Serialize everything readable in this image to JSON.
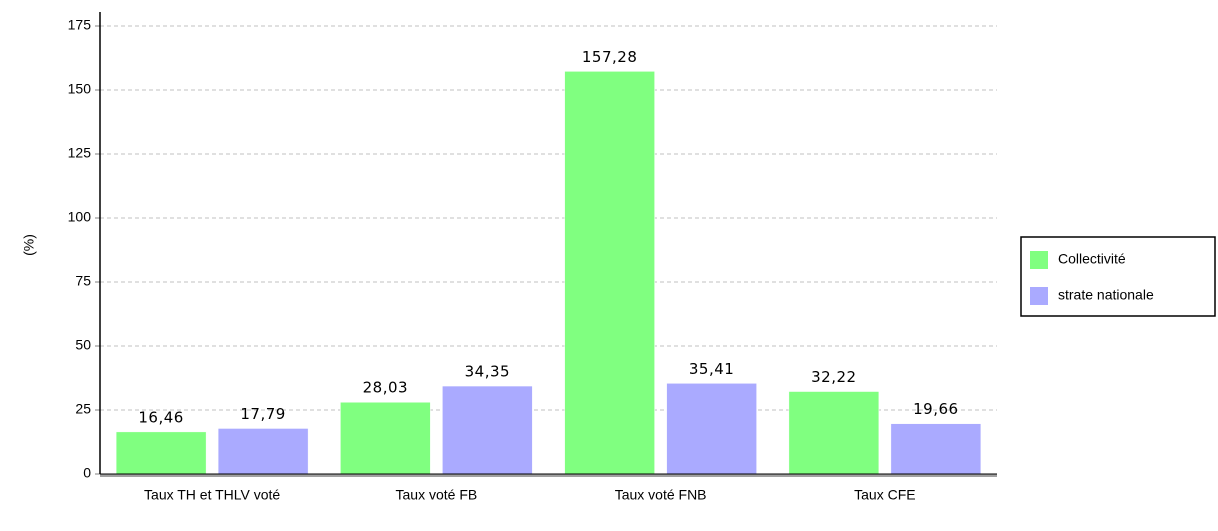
{
  "chart_data": {
    "type": "bar",
    "y_label": "(%)",
    "categories": [
      "Taux TH et THLV voté",
      "Taux voté FB",
      "Taux voté FNB",
      "Taux CFE"
    ],
    "series": [
      {
        "name": "Collectivité",
        "color": "#80ff80",
        "values": [
          16.46,
          28.03,
          157.28,
          32.22
        ],
        "value_labels": [
          "16,46",
          "28,03",
          "157,28",
          "32,22"
        ]
      },
      {
        "name": "strate nationale",
        "color": "#aaaaff",
        "values": [
          17.79,
          34.35,
          35.41,
          19.66
        ],
        "value_labels": [
          "17,79",
          "34,35",
          "35,41",
          "19,66"
        ]
      }
    ],
    "ylim": [
      0,
      175
    ],
    "yticks": [
      0,
      25,
      50,
      75,
      100,
      125,
      150,
      175
    ],
    "grid": true,
    "legend": "right"
  }
}
